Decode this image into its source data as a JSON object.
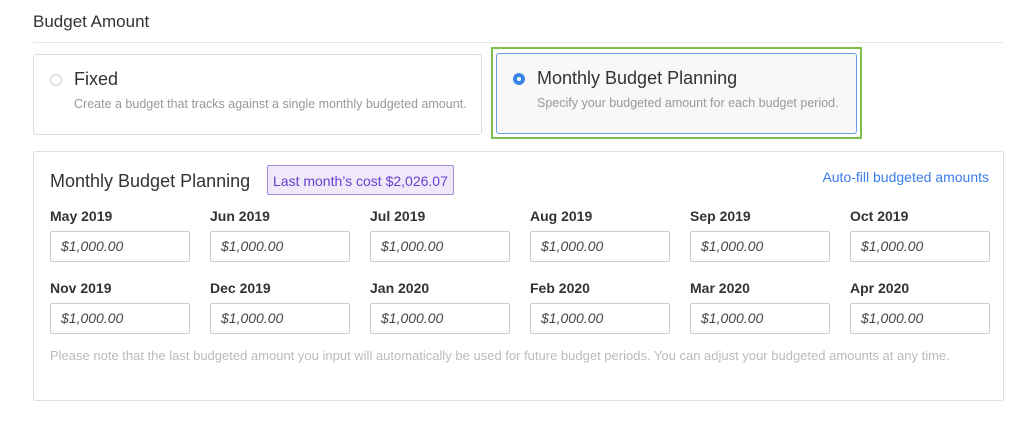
{
  "section_title": "Budget Amount",
  "options": [
    {
      "label": "Fixed",
      "description": "Create a budget that tracks against a single monthly budgeted amount.",
      "selected": false
    },
    {
      "label": "Monthly Budget Planning",
      "description": "Specify your budgeted amount for each budget period.",
      "selected": true
    }
  ],
  "panel": {
    "title": "Monthly Budget Planning",
    "badge": "Last month’s cost $2,026.07",
    "autofill_link": "Auto-fill budgeted amounts",
    "months": [
      {
        "label": "May 2019",
        "value": "$1,000.00"
      },
      {
        "label": "Jun 2019",
        "value": "$1,000.00"
      },
      {
        "label": "Jul 2019",
        "value": "$1,000.00"
      },
      {
        "label": "Aug 2019",
        "value": "$1,000.00"
      },
      {
        "label": "Sep 2019",
        "value": "$1,000.00"
      },
      {
        "label": "Oct 2019",
        "value": "$1,000.00"
      },
      {
        "label": "Nov 2019",
        "value": "$1,000.00"
      },
      {
        "label": "Dec 2019",
        "value": "$1,000.00"
      },
      {
        "label": "Jan 2020",
        "value": "$1,000.00"
      },
      {
        "label": "Feb 2020",
        "value": "$1,000.00"
      },
      {
        "label": "Mar 2020",
        "value": "$1,000.00"
      },
      {
        "label": "Apr 2020",
        "value": "$1,000.00"
      }
    ],
    "note": "Please note that the last budgeted amount you input will automatically be used for future budget periods. You can adjust your budgeted amounts at any time."
  },
  "colors": {
    "selected_outline": "#7cc04b",
    "radio_accent": "#3b82e8",
    "badge": "#6a3fd0",
    "link": "#3b7ee8"
  }
}
